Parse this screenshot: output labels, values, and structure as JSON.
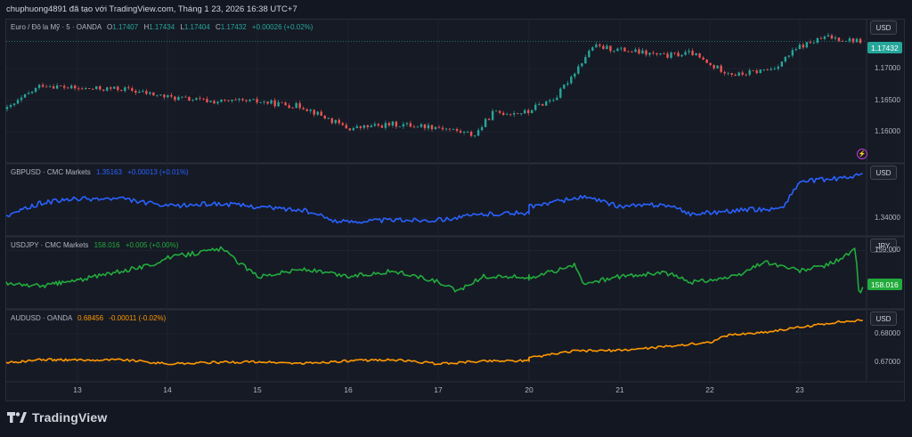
{
  "header": {
    "text": "chuphuong4891 đã tạo với TradingView.com, Tháng 1 23, 2026 16:38 UTC+7"
  },
  "footer": {
    "brand": "TradingView",
    "logo_icon": "tradingview-logo-icon"
  },
  "colors": {
    "background": "#131722",
    "up": "#26a69a",
    "down": "#ef5350",
    "gbp": "#2962ff",
    "jpy": "#22ab3c",
    "aud": "#ff9800"
  },
  "x_axis": {
    "ticks": [
      "13",
      "14",
      "15",
      "16",
      "17",
      "20",
      "21",
      "22",
      "23"
    ]
  },
  "chart_data": [
    {
      "type": "candlestick",
      "title": "Euro / Đô la Mỹ · 5 · OANDA",
      "ohlc": {
        "o_label": "O",
        "o": "1.17407",
        "h_label": "H",
        "h": "1.17434",
        "l_label": "L",
        "l": "1.17404",
        "c_label": "C",
        "c": "1.17432",
        "change": "+0.00026 (+0.02%)"
      },
      "unit": "USD",
      "last_value": "1.17432",
      "y_ticks": [
        "1.17000",
        "1.16500",
        "1.16000"
      ],
      "ylim": [
        1.1558,
        1.1772
      ],
      "days": [
        "13",
        "14",
        "15",
        "16",
        "17",
        "20",
        "21",
        "22",
        "23"
      ],
      "anchors": [
        [
          "12",
          1.1635
        ],
        [
          "12.5",
          1.1675
        ],
        [
          "13",
          1.1668
        ],
        [
          "13.5",
          1.1668
        ],
        [
          "14",
          1.1655
        ],
        [
          "14.5",
          1.1648
        ],
        [
          "15",
          1.1648
        ],
        [
          "15.5",
          1.164
        ],
        [
          "16",
          1.1605
        ],
        [
          "16.5",
          1.1612
        ],
        [
          "17",
          1.1608
        ],
        [
          "17.4",
          1.1595
        ],
        [
          "17.6",
          1.163
        ],
        [
          "20",
          1.1635
        ],
        [
          "20.3",
          1.1655
        ],
        [
          "20.7",
          1.1735
        ],
        [
          "21",
          1.173
        ],
        [
          "21.5",
          1.172
        ],
        [
          "21.8",
          1.1725
        ],
        [
          "22",
          1.1705
        ],
        [
          "22.3",
          1.169
        ],
        [
          "22.7",
          1.17
        ],
        [
          "23",
          1.1735
        ],
        [
          "23.3",
          1.175
        ],
        [
          "23.7",
          1.1743
        ]
      ]
    },
    {
      "type": "line",
      "title": "GBPUSD · CMC Markets",
      "last": "1.35163",
      "change": "+0.00013 (+0.01%)",
      "unit": "USD",
      "y_ticks": [
        "1.34000"
      ],
      "ylim": [
        1.3365,
        1.353
      ],
      "series": [
        {
          "name": "GBPUSD",
          "values": [
            [
              "12",
              1.3405
            ],
            [
              "12.5",
              1.344
            ],
            [
              "13",
              1.345
            ],
            [
              "13.5",
              1.345
            ],
            [
              "14",
              1.343
            ],
            [
              "14.5",
              1.3438
            ],
            [
              "15",
              1.343
            ],
            [
              "15.5",
              1.342
            ],
            [
              "15.9",
              1.339
            ],
            [
              "16.5",
              1.3395
            ],
            [
              "17",
              1.3395
            ],
            [
              "17.5",
              1.341
            ],
            [
              "20",
              1.343
            ],
            [
              "20.6",
              1.3455
            ],
            [
              "21",
              1.343
            ],
            [
              "21.5",
              1.3435
            ],
            [
              "21.8",
              1.341
            ],
            [
              "22.3",
              1.342
            ],
            [
              "22.8",
              1.3425
            ],
            [
              "23",
              1.3495
            ],
            [
              "23.5",
              1.3505
            ],
            [
              "23.7",
              1.3516
            ]
          ]
        }
      ]
    },
    {
      "type": "line",
      "title": "USDJPY · CMC Markets",
      "last": "158.016",
      "change": "+0.005 (+0.00%)",
      "unit": "JPY",
      "last_value": "158.016",
      "y_ticks": [
        "159.000"
      ],
      "ylim": [
        157.55,
        159.25
      ],
      "series": [
        {
          "name": "USDJPY",
          "values": [
            [
              "12",
              158.1
            ],
            [
              "12.5",
              158.05
            ],
            [
              "13",
              158.2
            ],
            [
              "13.4",
              158.4
            ],
            [
              "13.8",
              158.6
            ],
            [
              "14",
              158.8
            ],
            [
              "14.6",
              159.05
            ],
            [
              "15",
              158.3
            ],
            [
              "15.5",
              158.5
            ],
            [
              "16",
              158.3
            ],
            [
              "16.5",
              158.45
            ],
            [
              "17",
              158.15
            ],
            [
              "17.2",
              157.9
            ],
            [
              "17.5",
              158.3
            ],
            [
              "20",
              158.25
            ],
            [
              "20.5",
              158.6
            ],
            [
              "20.6",
              158.1
            ],
            [
              "21",
              158.3
            ],
            [
              "21.5",
              158.4
            ],
            [
              "21.8",
              158.15
            ],
            [
              "22.3",
              158.3
            ],
            [
              "22.6",
              158.7
            ],
            [
              "23",
              158.45
            ],
            [
              "23.3",
              158.6
            ],
            [
              "23.55",
              158.9
            ],
            [
              "23.62",
              159.05
            ],
            [
              "23.66",
              157.75
            ],
            [
              "23.7",
              158.016
            ]
          ]
        }
      ]
    },
    {
      "type": "line",
      "title": "AUDUSD · OANDA",
      "last": "0.68456",
      "change": "-0.00011 (-0.02%)",
      "unit": "USD",
      "y_ticks": [
        "0.68000",
        "0.67000"
      ],
      "ylim": [
        0.6648,
        0.6868
      ],
      "series": [
        {
          "name": "AUDUSD",
          "values": [
            [
              "12",
              0.6698
            ],
            [
              "12.5",
              0.671
            ],
            [
              "13",
              0.6708
            ],
            [
              "13.5",
              0.671
            ],
            [
              "14",
              0.6695
            ],
            [
              "14.5",
              0.67
            ],
            [
              "15",
              0.6702
            ],
            [
              "15.5",
              0.6696
            ],
            [
              "16",
              0.6705
            ],
            [
              "16.5",
              0.671
            ],
            [
              "17",
              0.6695
            ],
            [
              "17.5",
              0.6705
            ],
            [
              "20",
              0.6715
            ],
            [
              "20.5",
              0.674
            ],
            [
              "21",
              0.6742
            ],
            [
              "21.5",
              0.6755
            ],
            [
              "22",
              0.677
            ],
            [
              "22.2",
              0.6795
            ],
            [
              "22.6",
              0.6805
            ],
            [
              "23",
              0.6822
            ],
            [
              "23.4",
              0.684
            ],
            [
              "23.7",
              0.6846
            ]
          ]
        }
      ]
    }
  ]
}
